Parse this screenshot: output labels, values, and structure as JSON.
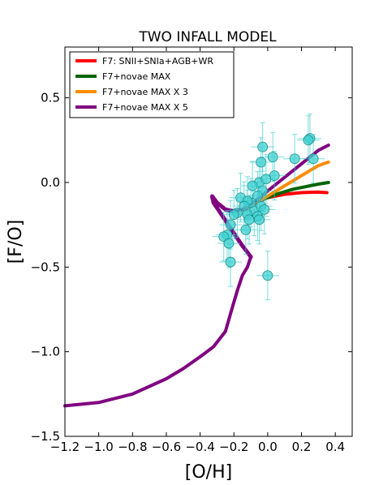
{
  "chart_data": {
    "type": "line",
    "title": "TWO INFALL MODEL",
    "xlabel": "[O/H]",
    "ylabel": "[F/O]",
    "xlim": [
      -1.2,
      0.5
    ],
    "ylim": [
      -1.5,
      0.8
    ],
    "xticks": [
      -1.2,
      -1.0,
      -0.8,
      -0.6,
      -0.4,
      -0.2,
      0.0,
      0.2,
      0.4
    ],
    "xtick_labels": [
      "−1.2",
      "−1.0",
      "−0.8",
      "−0.6",
      "−0.4",
      "−0.2",
      "0.0",
      "0.2",
      "0.4"
    ],
    "yticks": [
      -1.5,
      -1.0,
      -0.5,
      0.0,
      0.5
    ],
    "ytick_labels": [
      "−1.5",
      "−1.0",
      "−0.5",
      "0.0",
      "0.5"
    ],
    "grid": false,
    "legend_position": "top-left",
    "common_track": {
      "x": [
        -1.2,
        -1.0,
        -0.8,
        -0.6,
        -0.5,
        -0.4,
        -0.32,
        -0.25,
        -0.21,
        -0.18,
        -0.15,
        -0.12,
        -0.1
      ],
      "y": [
        -1.32,
        -1.3,
        -1.25,
        -1.16,
        -1.1,
        -1.03,
        -0.97,
        -0.88,
        -0.74,
        -0.64,
        -0.55,
        -0.5,
        -0.44
      ]
    },
    "loop_track": {
      "x": [
        -0.1,
        -0.16,
        -0.22,
        -0.28,
        -0.32,
        -0.33,
        -0.3,
        -0.25,
        -0.2
      ],
      "y": [
        -0.44,
        -0.36,
        -0.27,
        -0.18,
        -0.12,
        -0.08,
        -0.12,
        -0.16,
        -0.17
      ]
    },
    "series": [
      {
        "name": "F7: SNII+SNIa+AGB+WR",
        "color": "#ff0000",
        "x": [
          -0.2,
          -0.15,
          -0.1,
          -0.05,
          0.0,
          0.05,
          0.1,
          0.15,
          0.2,
          0.25,
          0.3,
          0.35
        ],
        "y": [
          -0.17,
          -0.16,
          -0.14,
          -0.11,
          -0.09,
          -0.08,
          -0.07,
          -0.065,
          -0.06,
          -0.058,
          -0.057,
          -0.06
        ]
      },
      {
        "name": "F7+novae  MAX",
        "color": "#006400",
        "x": [
          -0.2,
          -0.15,
          -0.1,
          -0.05,
          0.0,
          0.05,
          0.1,
          0.15,
          0.2,
          0.25,
          0.3,
          0.36
        ],
        "y": [
          -0.17,
          -0.16,
          -0.14,
          -0.11,
          -0.09,
          -0.07,
          -0.055,
          -0.04,
          -0.03,
          -0.02,
          -0.01,
          0.0
        ]
      },
      {
        "name": "F7+novae MAX X 3",
        "color": "#ff8c00",
        "x": [
          -0.2,
          -0.15,
          -0.1,
          -0.05,
          0.0,
          0.05,
          0.1,
          0.15,
          0.2,
          0.25,
          0.3,
          0.36
        ],
        "y": [
          -0.17,
          -0.16,
          -0.14,
          -0.11,
          -0.08,
          -0.05,
          -0.02,
          0.01,
          0.04,
          0.07,
          0.1,
          0.12
        ]
      },
      {
        "name": "F7+novae MAX  X 5",
        "color": "#800080",
        "x": [
          -0.2,
          -0.15,
          -0.1,
          -0.05,
          0.0,
          0.05,
          0.1,
          0.15,
          0.2,
          0.25,
          0.3,
          0.36
        ],
        "y": [
          -0.17,
          -0.16,
          -0.13,
          -0.09,
          -0.05,
          -0.01,
          0.03,
          0.07,
          0.11,
          0.15,
          0.19,
          0.22
        ]
      }
    ],
    "observations": {
      "color": "#40d0d0",
      "x": [
        0.25,
        0.24,
        0.27,
        0.16,
        0.03,
        -0.03,
        -0.04,
        -0.05,
        0.04,
        -0.01,
        -0.03,
        -0.09,
        -0.06,
        -0.16,
        -0.1,
        -0.12,
        -0.14,
        -0.08,
        -0.04,
        -0.02,
        -0.06,
        -0.12,
        -0.18,
        -0.2,
        -0.11,
        -0.13,
        -0.22,
        -0.24,
        -0.26,
        -0.23,
        -0.22,
        -0.05,
        0.0
      ],
      "y": [
        0.26,
        0.25,
        0.14,
        0.14,
        0.15,
        0.21,
        0.12,
        0.0,
        0.04,
        0.02,
        -0.05,
        -0.02,
        -0.08,
        -0.09,
        -0.12,
        -0.11,
        -0.14,
        -0.17,
        -0.14,
        -0.16,
        -0.2,
        -0.19,
        -0.18,
        -0.19,
        -0.22,
        -0.28,
        -0.25,
        -0.31,
        -0.32,
        -0.36,
        -0.47,
        -0.22,
        -0.55
      ]
    }
  }
}
